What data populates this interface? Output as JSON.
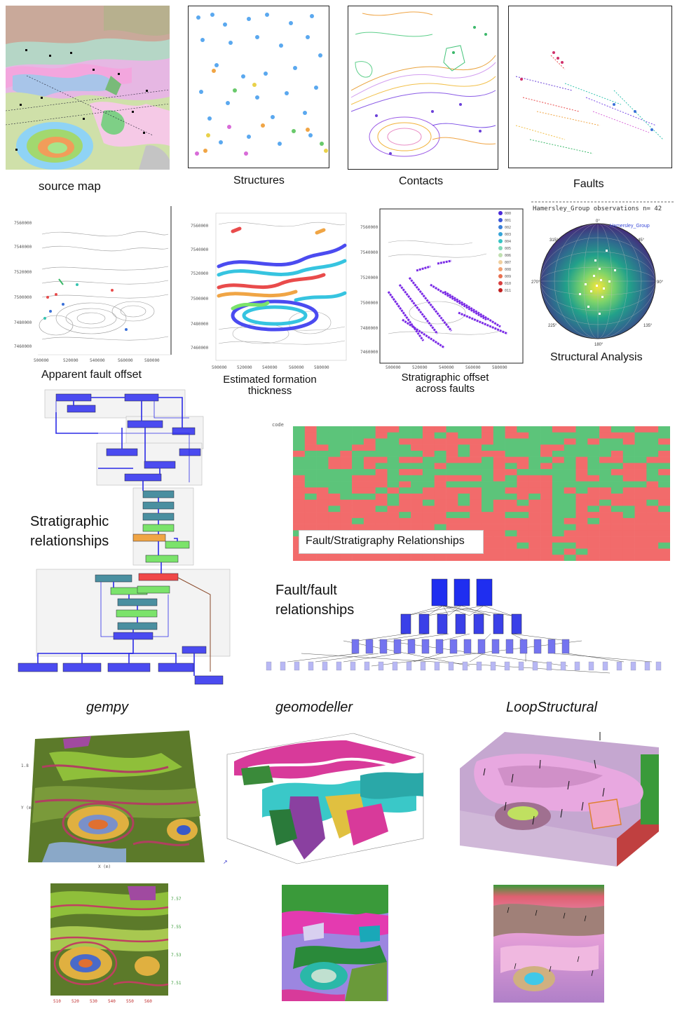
{
  "row1": {
    "source_map": "source map",
    "structures": "Structures",
    "contacts": "Contacts",
    "faults": "Faults"
  },
  "row2": {
    "fault_offset": "Apparent fault offset",
    "thickness": "Estimated formation\nthickness",
    "strat_offset": "Stratigraphic offset\nacross faults",
    "structural": "Structural Analysis",
    "stereonet_header": "Hamersley_Group observations n= 42",
    "stereonet_series": "Hamersley_Group",
    "stereonet_angles": [
      "0°",
      "45°",
      "90°",
      "135°",
      "180°",
      "225°",
      "270°",
      "315°"
    ],
    "offset_legend": [
      "000",
      "001",
      "002",
      "003",
      "004",
      "005",
      "006",
      "007",
      "008",
      "009",
      "010",
      "011"
    ]
  },
  "row3": {
    "strat_relationships": "Stratigraphic\nrelationships",
    "fault_strat": "Fault/Stratigraphy Relationships",
    "fault_fault": "Fault/fault\nrelationships",
    "matrix_header_code": "code"
  },
  "software": {
    "gempy": "gempy",
    "geomodeller": "geomodeller",
    "loopstructural": "LoopStructural"
  },
  "colors": {
    "matrix_red": "#f26b6b",
    "matrix_green": "#5cc47a",
    "node_blue": "#4b4bf0",
    "node_teal": "#4a8fa0",
    "node_green": "#7be36b",
    "node_red": "#f04848"
  }
}
